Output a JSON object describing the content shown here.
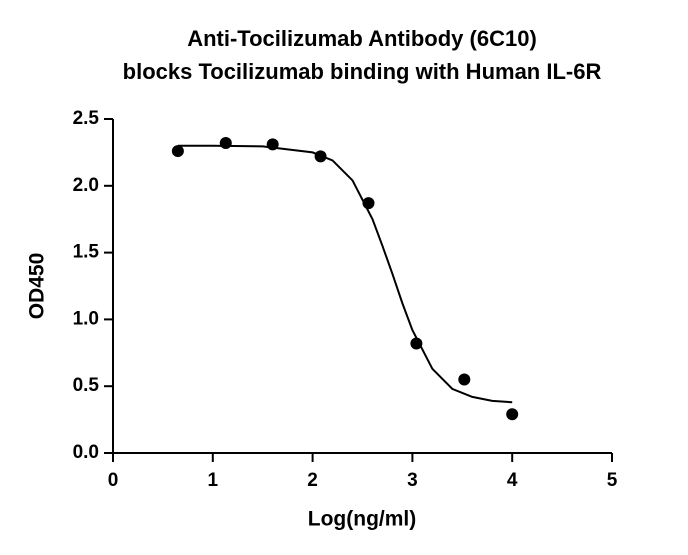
{
  "chart_data": {
    "type": "scatter",
    "title": [
      "Anti-Tocilizumab Antibody (6C10)",
      "blocks Tocilizumab binding with Human IL-6R"
    ],
    "x_label": "Log(ng/ml)",
    "y_label": "OD450",
    "xlim": [
      0,
      5
    ],
    "ylim": [
      0,
      2.5
    ],
    "xticks": [
      0,
      1,
      2,
      3,
      4,
      5
    ],
    "yticks": [
      {
        "value": 0,
        "label": "0.0"
      },
      0.5,
      {
        "value": 1,
        "label": "1.0"
      },
      1.5,
      {
        "value": 2,
        "label": "2.0"
      },
      2.5
    ],
    "grid": false,
    "series": [
      {
        "color": "#000000",
        "style": "points",
        "x": [
          0.65,
          1.13,
          1.6,
          2.08,
          2.56,
          3.04,
          3.52,
          4.0
        ],
        "values": [
          2.26,
          2.32,
          2.31,
          2.22,
          1.87,
          0.82,
          0.55,
          0.29
        ]
      },
      {
        "color": "#000000",
        "style": "line",
        "x": [
          0.65,
          1.0,
          1.5,
          2.0,
          2.2,
          2.4,
          2.6,
          2.7,
          2.8,
          2.9,
          3.0,
          3.2,
          3.4,
          3.6,
          3.8,
          4.0
        ],
        "values": [
          2.3,
          2.3,
          2.295,
          2.25,
          2.19,
          2.04,
          1.75,
          1.55,
          1.34,
          1.12,
          0.92,
          0.63,
          0.48,
          0.42,
          0.39,
          0.38
        ]
      }
    ]
  }
}
